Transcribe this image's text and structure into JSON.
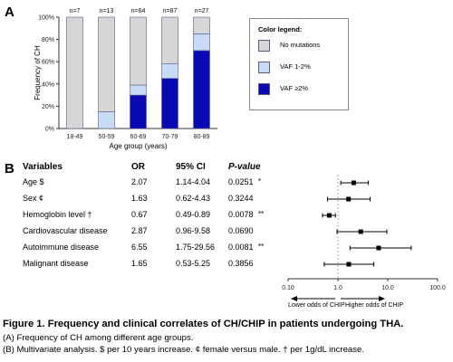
{
  "figure": {
    "panel_a_label": "A",
    "panel_b_label": "B",
    "caption_title": "Figure 1. Frequency and clinical correlates of CH/CHIP in patients undergoing THA.",
    "caption_a": "(A) Frequency of CH among different age groups.",
    "caption_b": "(B) Multivariate analysis. $ per 10 years increase. ¢  female versus male. † per 1g/dL increase."
  },
  "colors": {
    "no_mutation": "#d6d6d6",
    "vaf_low": "#c6dcf6",
    "vaf_high": "#0a0ab4",
    "bar_border": "#5a5a8a"
  },
  "chart_data": [
    {
      "type": "bar",
      "stacked": true,
      "title": "",
      "xlabel": "Age group (years)",
      "ylabel": "Frequency of CH",
      "ylim": [
        0,
        100
      ],
      "yticks": [
        "0%",
        "20%",
        "40%",
        "60%",
        "80%",
        "100%"
      ],
      "categories": [
        "18-49",
        "50-59",
        "60-69",
        "70-79",
        "80-89"
      ],
      "counts": [
        "n=7",
        "n=13",
        "n=64",
        "n=87",
        "n=27"
      ],
      "series": [
        {
          "name": "VAF ≥2%",
          "values": [
            0,
            0,
            30,
            45,
            70
          ]
        },
        {
          "name": "VAF 1-2%",
          "values": [
            0,
            15,
            9,
            13,
            15
          ]
        },
        {
          "name": "No mutations",
          "values": [
            100,
            85,
            61,
            42,
            15
          ]
        }
      ],
      "legend": {
        "title": "Color legend:",
        "position": "right",
        "items": [
          "No mutations",
          "VAF 1-2%",
          "VAF ≥2%"
        ]
      },
      "grid": false
    },
    {
      "type": "scatter",
      "subtype": "forest",
      "xscale": "log",
      "xlim": [
        0.1,
        100
      ],
      "xticks": [
        "0.10",
        "1.0",
        "10.0",
        "100.0"
      ],
      "reference_line": 1,
      "direction_left": "Lower odds of CHIP",
      "direction_right": "Higher odds of CHIP",
      "headers": {
        "variables": "Variables",
        "or": "OR",
        "ci": "95% CI",
        "p": "P-value"
      },
      "rows": [
        {
          "label": "Age $",
          "or_text": "2.07",
          "ci_text": "1.14-4.04",
          "p_text": "0.0251",
          "sig": "*",
          "or": 2.07,
          "lo": 1.14,
          "hi": 4.04
        },
        {
          "label": "Sex ¢",
          "or_text": "1.63",
          "ci_text": "0.62-4.43",
          "p_text": "0.3244",
          "sig": "",
          "or": 1.63,
          "lo": 0.62,
          "hi": 4.43
        },
        {
          "label": "Hemoglobin level †",
          "or_text": "0.67",
          "ci_text": "0.49-0.89",
          "p_text": "0.0078",
          "sig": "**",
          "or": 0.67,
          "lo": 0.49,
          "hi": 0.89
        },
        {
          "label": "Cardiovascular disease",
          "or_text": "2.87",
          "ci_text": "0.96-9.58",
          "p_text": "0.0690",
          "sig": "",
          "or": 2.87,
          "lo": 0.96,
          "hi": 9.58
        },
        {
          "label": "Autoimmune disease",
          "or_text": "6.55",
          "ci_text": "1.75-29.56",
          "p_text": "0.0081",
          "sig": "**",
          "or": 6.55,
          "lo": 1.75,
          "hi": 29.56
        },
        {
          "label": "Malignant disease",
          "or_text": "1.65",
          "ci_text": "0.53-5.25",
          "p_text": "0.3856",
          "sig": "",
          "or": 1.65,
          "lo": 0.53,
          "hi": 5.25
        }
      ]
    }
  ]
}
